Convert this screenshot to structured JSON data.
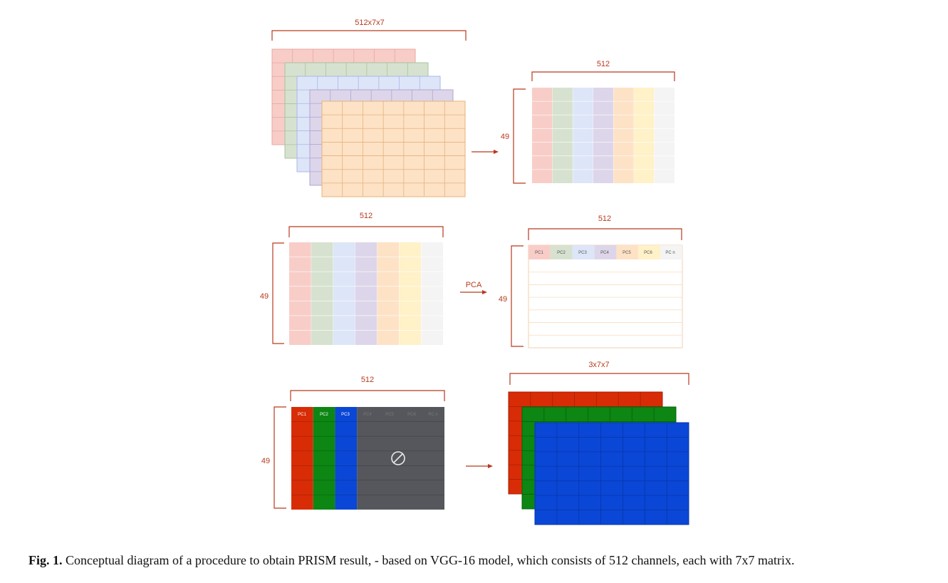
{
  "labels": {
    "top_dims": "512x7x7",
    "top_right_channels": "512",
    "top_right_rows": "49",
    "mid_left_channels": "512",
    "mid_left_rows": "49",
    "pca_label": "PCA",
    "mid_right_channels": "512",
    "mid_right_rows": "49",
    "bottom_left_channels": "512",
    "bottom_left_rows": "49",
    "bottom_right_dims": "3x7x7"
  },
  "pc_headers": [
    "PC1",
    "PC2",
    "PC3",
    "PC4",
    "PC5",
    "PC6",
    "PC n"
  ],
  "colors": {
    "bracket": "#b83a1f",
    "red_pastel": "#f8cdc8",
    "green_pastel": "#d6e2cf",
    "blue_pastel": "#dde5f8",
    "purple_pastel": "#ddd6ea",
    "orange_pastel": "#fde2c6",
    "yellow_pastel": "#fff1c8",
    "gray_pastel": "#f4f4f4",
    "red_solid": "#d82c06",
    "green_solid": "#0d8613",
    "blue_solid": "#0a47d6",
    "dark_gray": "#55575c"
  },
  "icons": {
    "discard": "prohibited-icon"
  },
  "caption": {
    "label": "Fig. 1.",
    "text": " Conceptual diagram of a procedure to obtain PRISM result, - based on VGG-16 model, which consists of 512 channels, each with 7x7 matrix."
  }
}
